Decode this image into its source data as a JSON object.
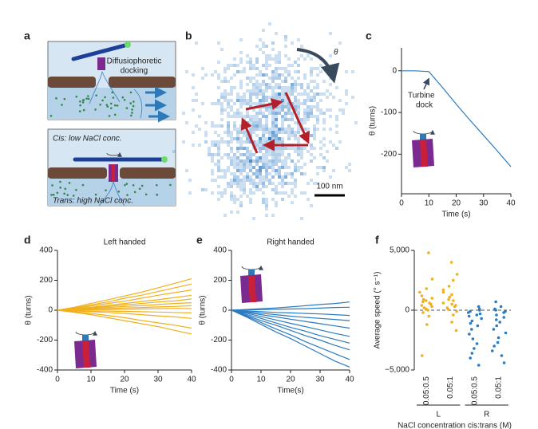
{
  "panels": {
    "a": {
      "label": "a",
      "annotation": [
        "Diffusiophoretic",
        "docking"
      ],
      "cis": "Cis: low NaCl conc.",
      "trans": "Trans: high NaCl conc."
    },
    "b": {
      "label": "b",
      "angle": "θ",
      "scale": "100 nm"
    }
  },
  "chart_data": [
    {
      "type": "line",
      "label": "c",
      "xlabel": "Time (s)",
      "ylabel": "θ (turns)",
      "color": "#2b7bc0",
      "annotation": [
        "Turbine",
        "dock"
      ],
      "x": [
        0,
        5,
        10,
        15,
        20,
        25,
        30,
        35,
        40
      ],
      "series": [
        {
          "values": [
            0,
            0,
            -2,
            -40,
            -80,
            -118,
            -155,
            -192,
            -230
          ]
        }
      ],
      "xlim": [
        0,
        40
      ],
      "xticks": [
        0,
        10,
        20,
        30,
        40
      ],
      "ylim": [
        -295,
        55
      ],
      "yticks": [
        0,
        -100,
        -200
      ]
    },
    {
      "type": "line",
      "label": "d",
      "title": "Left handed",
      "xlabel": "Time (s)",
      "ylabel": "θ (turns)",
      "color": "#f0b01e",
      "x": [
        0,
        5,
        10,
        15,
        20,
        25,
        30,
        35,
        40
      ],
      "series": [
        {
          "values": [
            0,
            20,
            45,
            70,
            95,
            120,
            150,
            180,
            210
          ]
        },
        {
          "values": [
            0,
            15,
            35,
            55,
            80,
            100,
            125,
            150,
            175
          ]
        },
        {
          "values": [
            0,
            12,
            28,
            45,
            60,
            80,
            100,
            118,
            135
          ]
        },
        {
          "values": [
            0,
            10,
            20,
            32,
            45,
            58,
            70,
            85,
            100
          ]
        },
        {
          "values": [
            0,
            8,
            16,
            25,
            35,
            45,
            55,
            62,
            75
          ]
        },
        {
          "values": [
            0,
            5,
            12,
            18,
            25,
            30,
            38,
            45,
            50
          ]
        },
        {
          "values": [
            0,
            3,
            6,
            10,
            15,
            18,
            22,
            25,
            30
          ]
        },
        {
          "values": [
            0,
            2,
            3,
            5,
            6,
            8,
            10,
            12,
            10
          ]
        },
        {
          "values": [
            0,
            -2,
            -5,
            -6,
            -8,
            -10,
            -12,
            -15,
            -18
          ]
        },
        {
          "values": [
            0,
            -5,
            -10,
            -15,
            -22,
            -30,
            -38,
            -45,
            -55
          ]
        },
        {
          "values": [
            0,
            -10,
            -22,
            -35,
            -50,
            -68,
            -85,
            -100,
            -120
          ]
        },
        {
          "values": [
            0,
            -15,
            -30,
            -50,
            -70,
            -90,
            -110,
            -135,
            -160
          ]
        }
      ],
      "xlim": [
        0,
        40
      ],
      "xticks": [
        0,
        10,
        20,
        30,
        40
      ],
      "ylim": [
        -400,
        400
      ],
      "yticks": [
        -400,
        -200,
        0,
        200,
        400
      ]
    },
    {
      "type": "line",
      "label": "e",
      "title": "Right handed",
      "xlabel": "Time(s)",
      "ylabel": "θ (turns)",
      "color": "#2b7bc0",
      "x": [
        0,
        5,
        10,
        15,
        20,
        25,
        30,
        35,
        40
      ],
      "series": [
        {
          "values": [
            0,
            5,
            10,
            15,
            22,
            30,
            38,
            45,
            55
          ]
        },
        {
          "values": [
            0,
            2,
            4,
            6,
            8,
            10,
            14,
            18,
            20
          ]
        },
        {
          "values": [
            0,
            -5,
            -10,
            -15,
            -18,
            -22,
            -25,
            -30,
            -35
          ]
        },
        {
          "values": [
            0,
            -10,
            -20,
            -30,
            -40,
            -48,
            -55,
            -62,
            -70
          ]
        },
        {
          "values": [
            0,
            -15,
            -30,
            -45,
            -60,
            -75,
            -90,
            -105,
            -120
          ]
        },
        {
          "values": [
            0,
            -20,
            -42,
            -65,
            -88,
            -110,
            -132,
            -155,
            -175
          ]
        },
        {
          "values": [
            0,
            -28,
            -55,
            -85,
            -115,
            -140,
            -170,
            -195,
            -220
          ]
        },
        {
          "values": [
            0,
            -35,
            -70,
            -100,
            -135,
            -170,
            -200,
            -235,
            -265
          ]
        },
        {
          "values": [
            0,
            -40,
            -82,
            -125,
            -165,
            -210,
            -250,
            -290,
            -330
          ]
        },
        {
          "values": [
            0,
            -45,
            -95,
            -145,
            -190,
            -240,
            -290,
            -340,
            -380
          ]
        }
      ],
      "xlim": [
        0,
        40
      ],
      "xticks": [
        0,
        10,
        20,
        30,
        40
      ],
      "ylim": [
        -400,
        400
      ],
      "yticks": [
        -400,
        -200,
        0,
        200,
        400
      ]
    },
    {
      "type": "strip",
      "label": "f",
      "xlabel": "NaCl concentration cis:trans (M)",
      "ylabel": "Average speed (° s⁻¹)",
      "groups": [
        {
          "label": "L",
          "color": "#f0b01e",
          "categories": [
            "0.05:0.5",
            "0.05:1"
          ],
          "values": [
            [
              4800,
              2600,
              1800,
              1500,
              1200,
              1000,
              900,
              800,
              700,
              600,
              500,
              400,
              300,
              200,
              100,
              0,
              -200,
              -500,
              -1200,
              -3800
            ],
            [
              4000,
              3000,
              2500,
              2000,
              1700,
              1500,
              1300,
              1100,
              900,
              800,
              600,
              500,
              400,
              300,
              200,
              100,
              -100,
              -400,
              -1000,
              -1700
            ]
          ]
        },
        {
          "label": "R",
          "color": "#2b7bc0",
          "categories": [
            "0.05:0.5",
            "0.05:1"
          ],
          "values": [
            [
              300,
              100,
              0,
              -100,
              -200,
              -300,
              -400,
              -500,
              -700,
              -900,
              -1100,
              -1300,
              -1600,
              -2000,
              -2400,
              -2800,
              -3200,
              -3600,
              -4000,
              -4600
            ],
            [
              700,
              300,
              100,
              0,
              -100,
              -200,
              -400,
              -600,
              -800,
              -1000,
              -1300,
              -1600,
              -1900,
              -2300,
              -2700,
              -3000,
              -3400,
              -3800,
              -4400
            ]
          ]
        }
      ],
      "ylim": [
        -5000,
        5000
      ],
      "yticks": [
        {
          "value": 5000,
          "label": "5,000"
        },
        0,
        {
          "value": -5000,
          "label": "−5,000"
        }
      ]
    }
  ]
}
